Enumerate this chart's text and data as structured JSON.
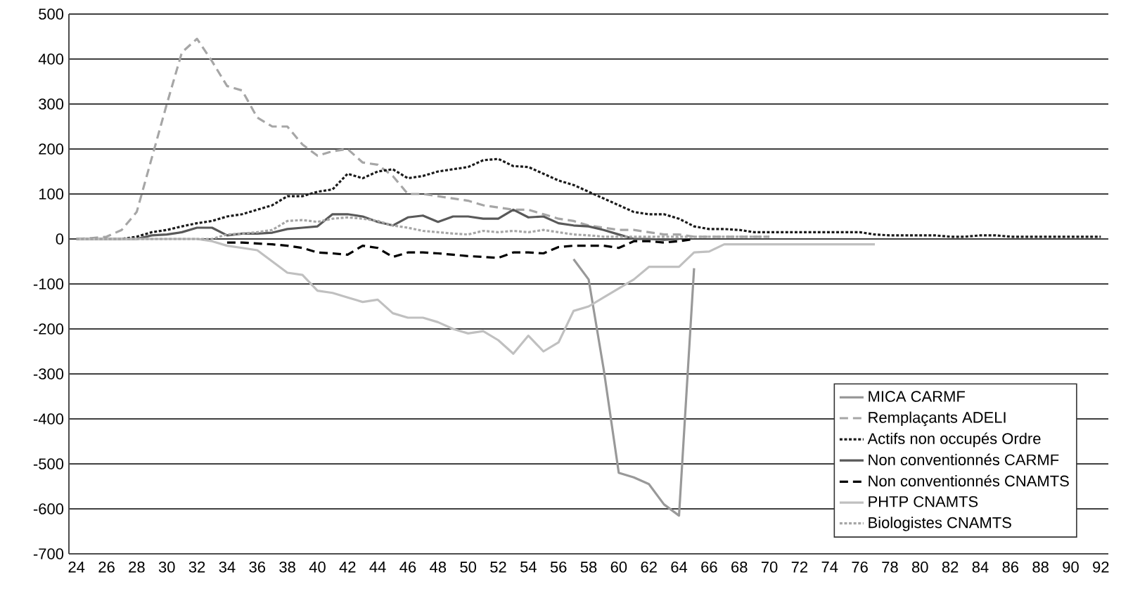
{
  "chart_data": {
    "type": "line",
    "xlim": [
      23.5,
      92.5
    ],
    "xticks": [
      24,
      26,
      28,
      30,
      32,
      34,
      36,
      38,
      40,
      42,
      44,
      46,
      48,
      50,
      52,
      54,
      56,
      58,
      60,
      62,
      64,
      66,
      68,
      70,
      72,
      74,
      76,
      78,
      80,
      82,
      84,
      86,
      88,
      90,
      92
    ],
    "ylim": [
      -700,
      500
    ],
    "yticks": [
      -700,
      -600,
      -500,
      -400,
      -300,
      -200,
      -100,
      0,
      100,
      200,
      300,
      400,
      500
    ],
    "grid": "y",
    "legend": "bottom right",
    "marker": "none",
    "series": [
      {
        "name": "MICA CARMF",
        "color": "#999999",
        "line_style": "solid",
        "x": [
          57,
          58,
          59,
          60,
          61,
          62,
          63,
          64,
          65
        ],
        "values": [
          -45,
          -90,
          -290,
          -520,
          -530,
          -545,
          -590,
          -615,
          -65
        ]
      },
      {
        "name": "Remplaçants ADELI",
        "color": "#a6a6a6",
        "line_style": "dashed",
        "x": [
          24,
          25,
          26,
          27,
          28,
          29,
          30,
          31,
          32,
          33,
          34,
          35,
          36,
          37,
          38,
          39,
          40,
          41,
          42,
          43,
          44,
          45,
          46,
          47,
          48,
          49,
          50,
          51,
          52,
          53,
          54,
          55,
          56,
          57,
          58,
          59,
          60,
          61,
          62,
          63,
          64,
          65,
          66,
          67,
          68,
          69,
          70
        ],
        "values": [
          0,
          2,
          5,
          20,
          60,
          180,
          300,
          415,
          445,
          395,
          340,
          330,
          270,
          250,
          250,
          210,
          185,
          195,
          200,
          170,
          165,
          140,
          100,
          100,
          95,
          90,
          85,
          75,
          70,
          65,
          65,
          55,
          45,
          40,
          30,
          25,
          20,
          20,
          15,
          10,
          10,
          5,
          5,
          5,
          5,
          5,
          5
        ]
      },
      {
        "name": "Actifs non occupés Ordre",
        "color": "#1a1a1a",
        "line_style": "dotted",
        "x": [
          24,
          25,
          26,
          27,
          28,
          29,
          30,
          31,
          32,
          33,
          34,
          35,
          36,
          37,
          38,
          39,
          40,
          41,
          42,
          43,
          44,
          45,
          46,
          47,
          48,
          49,
          50,
          51,
          52,
          53,
          54,
          55,
          56,
          57,
          58,
          59,
          60,
          61,
          62,
          63,
          64,
          65,
          66,
          67,
          68,
          69,
          70,
          71,
          72,
          73,
          74,
          75,
          76,
          77,
          78,
          79,
          80,
          81,
          82,
          83,
          84,
          85,
          86,
          87,
          88,
          89,
          90,
          91,
          92
        ],
        "values": [
          0,
          0,
          0,
          0,
          5,
          15,
          20,
          28,
          35,
          40,
          50,
          55,
          65,
          75,
          95,
          95,
          105,
          110,
          145,
          135,
          150,
          155,
          135,
          140,
          150,
          155,
          160,
          175,
          178,
          162,
          160,
          145,
          130,
          120,
          105,
          90,
          75,
          60,
          55,
          55,
          45,
          28,
          22,
          22,
          20,
          15,
          15,
          15,
          15,
          15,
          15,
          15,
          15,
          10,
          8,
          8,
          8,
          8,
          5,
          5,
          8,
          8,
          5,
          5,
          5,
          5,
          5,
          5,
          5
        ]
      },
      {
        "name": "Non conventionnés CARMF",
        "color": "#595959",
        "line_style": "solid",
        "x": [
          24,
          25,
          26,
          27,
          28,
          29,
          30,
          31,
          32,
          33,
          34,
          35,
          36,
          37,
          38,
          39,
          40,
          41,
          42,
          43,
          44,
          45,
          46,
          47,
          48,
          49,
          50,
          51,
          52,
          53,
          54,
          55,
          56,
          57,
          58,
          59,
          60,
          61,
          62,
          63,
          64
        ],
        "values": [
          0,
          0,
          0,
          0,
          0,
          8,
          10,
          15,
          25,
          25,
          8,
          12,
          12,
          14,
          22,
          25,
          28,
          55,
          55,
          50,
          38,
          30,
          48,
          52,
          38,
          50,
          50,
          45,
          45,
          65,
          48,
          50,
          35,
          30,
          28,
          20,
          10,
          0,
          0,
          -2,
          0
        ]
      },
      {
        "name": "Non conventionnés CNAMTS",
        "color": "#000000",
        "line_style": "dashed",
        "x": [
          34,
          35,
          36,
          37,
          38,
          39,
          40,
          41,
          42,
          43,
          44,
          45,
          46,
          47,
          48,
          49,
          50,
          51,
          52,
          53,
          54,
          55,
          56,
          57,
          58,
          59,
          60,
          61,
          62,
          63,
          64,
          65
        ],
        "values": [
          -8,
          -8,
          -10,
          -12,
          -15,
          -20,
          -30,
          -32,
          -35,
          -15,
          -20,
          -40,
          -30,
          -30,
          -32,
          -35,
          -38,
          -40,
          -42,
          -30,
          -30,
          -32,
          -18,
          -15,
          -15,
          -15,
          -20,
          -5,
          -5,
          -8,
          -5,
          0
        ]
      },
      {
        "name": "PHTP CNAMTS",
        "color": "#c0c0c0",
        "line_style": "solid",
        "x": [
          24,
          25,
          26,
          27,
          28,
          29,
          30,
          31,
          32,
          33,
          34,
          35,
          36,
          37,
          38,
          39,
          40,
          41,
          42,
          43,
          44,
          45,
          46,
          47,
          48,
          49,
          50,
          51,
          52,
          53,
          54,
          55,
          56,
          57,
          58,
          59,
          60,
          61,
          62,
          63,
          64,
          65,
          66,
          67,
          68,
          69,
          70,
          71,
          72,
          73,
          74,
          75,
          76,
          77
        ],
        "values": [
          0,
          0,
          0,
          0,
          0,
          0,
          0,
          0,
          0,
          -5,
          -15,
          -20,
          -25,
          -50,
          -75,
          -80,
          -115,
          -120,
          -130,
          -140,
          -135,
          -165,
          -175,
          -175,
          -185,
          -200,
          -210,
          -205,
          -225,
          -255,
          -215,
          -250,
          -230,
          -160,
          -150,
          -130,
          -110,
          -90,
          -62,
          -62,
          -62,
          -30,
          -28,
          -12,
          -12,
          -12,
          -12,
          -12,
          -12,
          -12,
          -12,
          -12,
          -12,
          -12
        ]
      },
      {
        "name": "Biologistes CNAMTS",
        "color": "#a6a6a6",
        "line_style": "dotted",
        "x": [
          24,
          25,
          26,
          27,
          28,
          29,
          30,
          31,
          32,
          33,
          34,
          35,
          36,
          37,
          38,
          39,
          40,
          41,
          42,
          43,
          44,
          45,
          46,
          47,
          48,
          49,
          50,
          51,
          52,
          53,
          54,
          55,
          56,
          57,
          58,
          59,
          60,
          61,
          62,
          63,
          64,
          65,
          66,
          67,
          68,
          69,
          70
        ],
        "values": [
          0,
          0,
          0,
          0,
          0,
          0,
          0,
          0,
          0,
          0,
          10,
          12,
          15,
          20,
          40,
          42,
          38,
          45,
          48,
          45,
          40,
          30,
          25,
          18,
          15,
          12,
          10,
          18,
          15,
          18,
          15,
          20,
          15,
          10,
          8,
          5,
          5,
          5,
          5,
          5,
          5,
          5,
          5,
          5,
          5,
          5,
          5
        ]
      }
    ]
  }
}
